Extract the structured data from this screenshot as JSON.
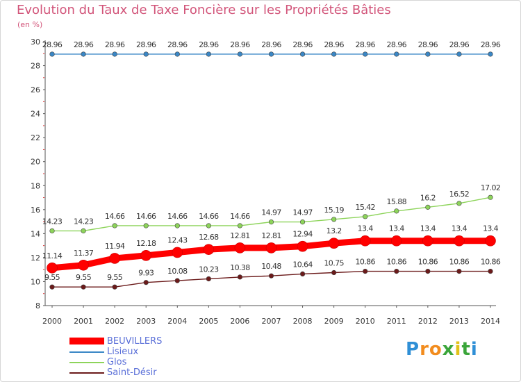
{
  "title": "Evolution du Taux de Taxe Foncière sur les Propriétés Bâties",
  "unit": "(en %)",
  "chart_data": {
    "type": "line",
    "title": "Evolution du Taux de Taxe Foncière sur les Propriétés Bâties",
    "ylabel": "(en %)",
    "xlabel": "",
    "ylim": [
      8,
      30
    ],
    "yticks": [
      8,
      10,
      12,
      14,
      16,
      18,
      20,
      22,
      24,
      26,
      28,
      30
    ],
    "grid": false,
    "x": [
      2000,
      2001,
      2002,
      2003,
      2004,
      2005,
      2006,
      2007,
      2008,
      2009,
      2010,
      2011,
      2012,
      2013,
      2014
    ],
    "series": [
      {
        "name": "BEUVILLERS",
        "color": "#ff0000",
        "values": [
          11.14,
          11.37,
          11.94,
          12.18,
          12.43,
          12.68,
          12.81,
          12.81,
          12.94,
          13.2,
          13.4,
          13.4,
          13.4,
          13.4,
          13.4
        ],
        "labels": [
          "11.14",
          "11.37",
          "11.94",
          "12.18",
          "12.43",
          "12.68",
          "12.81",
          "12.81",
          "12.94",
          "13.2",
          "13.4",
          "13.4",
          "13.4",
          "13.4",
          "13.4"
        ]
      },
      {
        "name": "Lisieux",
        "color": "#3a87c6",
        "values": [
          28.96,
          28.96,
          28.96,
          28.96,
          28.96,
          28.96,
          28.96,
          28.96,
          28.96,
          28.96,
          28.96,
          28.96,
          28.96,
          28.96,
          28.96
        ],
        "labels": [
          "28.96",
          "28.96",
          "28.96",
          "28.96",
          "28.96",
          "28.96",
          "28.96",
          "28.96",
          "28.96",
          "28.96",
          "28.96",
          "28.96",
          "28.96",
          "28.96",
          "28.96"
        ]
      },
      {
        "name": "Glos",
        "color": "#8dd45a",
        "values": [
          14.23,
          14.23,
          14.66,
          14.66,
          14.66,
          14.66,
          14.66,
          14.97,
          14.97,
          15.19,
          15.42,
          15.88,
          16.2,
          16.52,
          17.02
        ],
        "labels": [
          "14.23",
          "14.23",
          "14.66",
          "14.66",
          "14.66",
          "14.66",
          "14.66",
          "14.97",
          "14.97",
          "15.19",
          "15.42",
          "15.88",
          "16.2",
          "16.52",
          "17.02"
        ]
      },
      {
        "name": "Saint-Désir",
        "color": "#6b1a1a",
        "values": [
          9.55,
          9.55,
          9.55,
          9.93,
          10.08,
          10.23,
          10.38,
          10.48,
          10.64,
          10.75,
          10.86,
          10.86,
          10.86,
          10.86,
          10.86
        ],
        "labels": [
          "9.55",
          "9.55",
          "9.55",
          "9.93",
          "10.08",
          "10.23",
          "10.38",
          "10.48",
          "10.64",
          "10.75",
          "10.86",
          "10.86",
          "10.86",
          "10.86",
          "10.86"
        ]
      }
    ]
  },
  "legend": [
    {
      "label": "BEUVILLERS"
    },
    {
      "label": "Lisieux"
    },
    {
      "label": "Glos"
    },
    {
      "label": "Saint-Désir"
    }
  ],
  "brand": {
    "letters": [
      "P",
      "r",
      "o",
      "x",
      "i",
      "t",
      "i"
    ],
    "colors": [
      "#2f8fd6",
      "#f28c1e",
      "#f28c1e",
      "#3aa53a",
      "#e2c21a",
      "#3aa53a",
      "#2f8fd6"
    ]
  }
}
